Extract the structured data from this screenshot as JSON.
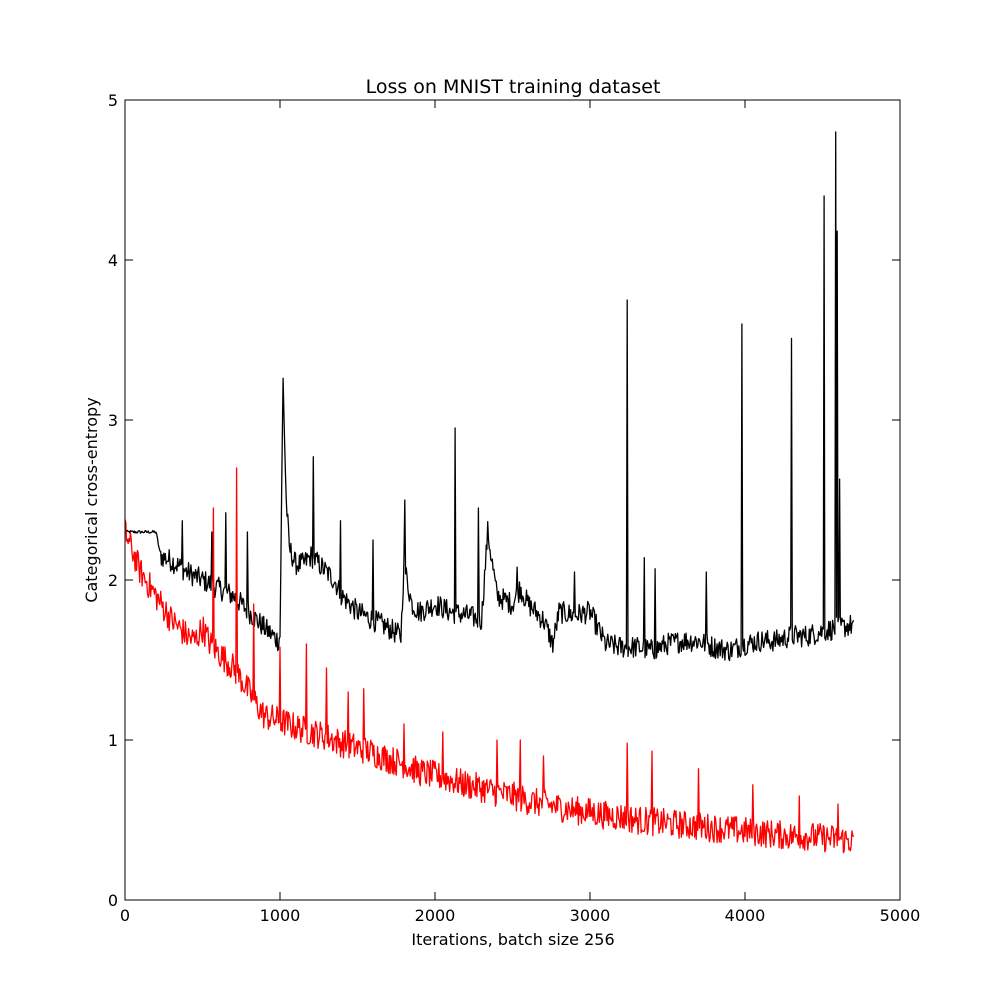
{
  "chart_data": {
    "type": "line",
    "title": "Loss on MNIST training dataset",
    "xlabel": "Iterations, batch size 256",
    "ylabel": "Categorical cross-entropy",
    "xlim": [
      0,
      5000
    ],
    "ylim": [
      0,
      5
    ],
    "x_ticks": [
      0,
      1000,
      2000,
      3000,
      4000,
      5000
    ],
    "y_ticks": [
      0,
      1,
      2,
      3,
      4,
      5
    ],
    "x_tick_labels": [
      "0",
      "1000",
      "2000",
      "3000",
      "4000",
      "5000"
    ],
    "y_tick_labels": [
      "0",
      "1",
      "2",
      "3",
      "4",
      "5"
    ],
    "grid": false,
    "legend": "none",
    "series": [
      {
        "color": "#000000",
        "x": [
          0,
          200,
          230,
          300,
          400,
          500,
          600,
          700,
          800,
          900,
          990,
          1000,
          1010,
          1020,
          1040,
          1060,
          1100,
          1150,
          1200,
          1250,
          1300,
          1350,
          1400,
          1450,
          1500,
          1600,
          1700,
          1780,
          1800,
          1850,
          1900,
          2000,
          2100,
          2200,
          2300,
          2340,
          2400,
          2500,
          2550,
          2600,
          2700,
          2760,
          2800,
          2900,
          3000,
          3100,
          3200,
          3300,
          3400,
          3500,
          3600,
          3700,
          3800,
          3900,
          4000,
          4100,
          4200,
          4300,
          4400,
          4500,
          4600,
          4700
        ],
        "values": [
          2.3,
          2.3,
          2.15,
          2.12,
          2.05,
          2.0,
          1.95,
          1.9,
          1.8,
          1.7,
          1.62,
          1.65,
          2.5,
          3.25,
          2.5,
          2.2,
          2.1,
          2.1,
          2.15,
          2.1,
          2.05,
          2.0,
          1.9,
          1.85,
          1.8,
          1.75,
          1.7,
          1.65,
          2.1,
          1.85,
          1.8,
          1.85,
          1.8,
          1.78,
          1.75,
          2.3,
          1.9,
          1.85,
          1.95,
          1.85,
          1.75,
          1.6,
          1.8,
          1.78,
          1.8,
          1.6,
          1.58,
          1.58,
          1.56,
          1.6,
          1.62,
          1.62,
          1.58,
          1.56,
          1.6,
          1.62,
          1.62,
          1.65,
          1.65,
          1.68,
          1.7,
          1.72
        ],
        "spikes": [
          {
            "x": 370,
            "y": 2.37
          },
          {
            "x": 560,
            "y": 2.3
          },
          {
            "x": 650,
            "y": 2.42
          },
          {
            "x": 790,
            "y": 2.3
          },
          {
            "x": 1215,
            "y": 2.77
          },
          {
            "x": 1390,
            "y": 2.37
          },
          {
            "x": 1600,
            "y": 2.25
          },
          {
            "x": 1805,
            "y": 2.5
          },
          {
            "x": 2130,
            "y": 2.95
          },
          {
            "x": 2280,
            "y": 2.45
          },
          {
            "x": 2530,
            "y": 2.08
          },
          {
            "x": 2900,
            "y": 2.05
          },
          {
            "x": 3240,
            "y": 3.75
          },
          {
            "x": 3350,
            "y": 2.14
          },
          {
            "x": 3420,
            "y": 2.07
          },
          {
            "x": 3750,
            "y": 2.05
          },
          {
            "x": 3980,
            "y": 3.6
          },
          {
            "x": 4300,
            "y": 3.51
          },
          {
            "x": 4510,
            "y": 4.4
          },
          {
            "x": 4585,
            "y": 4.8
          },
          {
            "x": 4595,
            "y": 4.18
          },
          {
            "x": 4610,
            "y": 2.63
          }
        ],
        "noise": 0.07
      },
      {
        "color": "#ff0000",
        "x": [
          0,
          100,
          200,
          300,
          400,
          450,
          500,
          550,
          600,
          650,
          700,
          750,
          800,
          850,
          900,
          1000,
          1100,
          1200,
          1300,
          1400,
          1500,
          1600,
          1700,
          1800,
          1900,
          2000,
          2100,
          2200,
          2300,
          2400,
          2500,
          2600,
          2700,
          2800,
          2900,
          3000,
          3100,
          3200,
          3300,
          3400,
          3500,
          3600,
          3700,
          3800,
          3900,
          4000,
          4100,
          4200,
          4300,
          4400,
          4500,
          4600,
          4700
        ],
        "values": [
          2.3,
          2.05,
          1.9,
          1.75,
          1.65,
          1.62,
          1.7,
          1.6,
          1.55,
          1.5,
          1.45,
          1.38,
          1.3,
          1.22,
          1.15,
          1.12,
          1.08,
          1.05,
          1.02,
          0.98,
          0.95,
          0.92,
          0.88,
          0.85,
          0.8,
          0.78,
          0.75,
          0.72,
          0.7,
          0.67,
          0.65,
          0.62,
          0.6,
          0.58,
          0.56,
          0.55,
          0.53,
          0.52,
          0.5,
          0.49,
          0.48,
          0.47,
          0.46,
          0.45,
          0.44,
          0.43,
          0.42,
          0.41,
          0.4,
          0.4,
          0.39,
          0.38,
          0.37
        ],
        "spikes": [
          {
            "x": 570,
            "y": 2.45
          },
          {
            "x": 720,
            "y": 2.7
          },
          {
            "x": 830,
            "y": 1.85
          },
          {
            "x": 1000,
            "y": 1.58
          },
          {
            "x": 1170,
            "y": 1.6
          },
          {
            "x": 1300,
            "y": 1.45
          },
          {
            "x": 1440,
            "y": 1.3
          },
          {
            "x": 1540,
            "y": 1.32
          },
          {
            "x": 1800,
            "y": 1.1
          },
          {
            "x": 2050,
            "y": 1.05
          },
          {
            "x": 2400,
            "y": 1.0
          },
          {
            "x": 2550,
            "y": 1.0
          },
          {
            "x": 2700,
            "y": 0.9
          },
          {
            "x": 3240,
            "y": 0.98
          },
          {
            "x": 3400,
            "y": 0.93
          },
          {
            "x": 3700,
            "y": 0.82
          },
          {
            "x": 4050,
            "y": 0.72
          },
          {
            "x": 4350,
            "y": 0.65
          },
          {
            "x": 4600,
            "y": 0.6
          }
        ],
        "noise": 0.09
      }
    ]
  }
}
